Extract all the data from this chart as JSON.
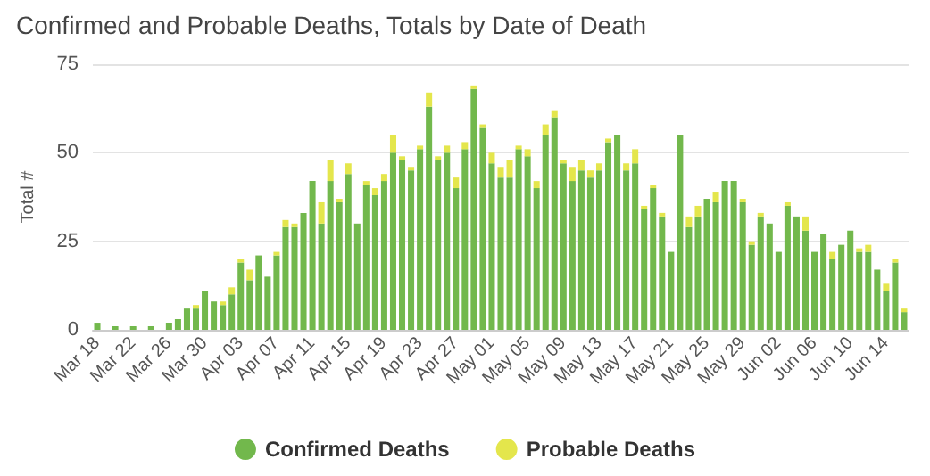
{
  "chart_data": {
    "type": "bar",
    "title": "Confirmed and Probable Deaths, Totals by Date of Death",
    "ylabel": "Total #",
    "stacked": true,
    "categories": [
      "Mar 18",
      null,
      null,
      null,
      "Mar 22",
      null,
      null,
      null,
      "Mar 26",
      null,
      null,
      null,
      "Mar 30",
      null,
      null,
      null,
      "Apr 03",
      null,
      null,
      null,
      "Apr 07",
      null,
      null,
      null,
      "Apr 11",
      null,
      null,
      null,
      "Apr 15",
      null,
      null,
      null,
      "Apr 19",
      null,
      null,
      null,
      "Apr 23",
      null,
      null,
      null,
      "Apr 27",
      null,
      null,
      null,
      "May 01",
      null,
      null,
      null,
      "May 05",
      null,
      null,
      null,
      "May 09",
      null,
      null,
      null,
      "May 13",
      null,
      null,
      null,
      "May 17",
      null,
      null,
      null,
      "May 21",
      null,
      null,
      null,
      "May 25",
      null,
      null,
      null,
      "May 29",
      null,
      null,
      null,
      "Jun 02",
      null,
      null,
      null,
      "Jun 06",
      null,
      null,
      null,
      "Jun 10",
      null,
      null,
      null,
      "Jun 14",
      null,
      null
    ],
    "series": [
      {
        "name": "Confirmed Deaths",
        "color": "#72b84c",
        "values": [
          2,
          0,
          1,
          0,
          1,
          0,
          1,
          0,
          2,
          3,
          6,
          6,
          11,
          8,
          7,
          10,
          19,
          14,
          21,
          15,
          21,
          29,
          29,
          33,
          42,
          30,
          42,
          36,
          44,
          30,
          41,
          38,
          42,
          50,
          48,
          45,
          51,
          63,
          48,
          50,
          40,
          51,
          68,
          57,
          47,
          43,
          43,
          51,
          49,
          40,
          55,
          60,
          47,
          42,
          45,
          43,
          45,
          53,
          55,
          45,
          47,
          34,
          40,
          32,
          22,
          55,
          29,
          32,
          37,
          36,
          42,
          42,
          36,
          24,
          32,
          30,
          22,
          35,
          32,
          28,
          22,
          27,
          20,
          24,
          28,
          22,
          22,
          17,
          11,
          19,
          5
        ]
      },
      {
        "name": "Probable Deaths",
        "color": "#e4e64c",
        "values": [
          0,
          0,
          0,
          0,
          0,
          0,
          0,
          0,
          0,
          0,
          0,
          1,
          0,
          0,
          1,
          2,
          1,
          3,
          0,
          0,
          1,
          2,
          1,
          0,
          0,
          6,
          6,
          1,
          3,
          0,
          1,
          2,
          2,
          5,
          1,
          1,
          1,
          4,
          1,
          2,
          3,
          2,
          1,
          1,
          3,
          3,
          5,
          1,
          2,
          2,
          3,
          2,
          1,
          4,
          3,
          2,
          2,
          1,
          0,
          2,
          4,
          1,
          1,
          1,
          0,
          0,
          3,
          3,
          0,
          3,
          0,
          0,
          1,
          1,
          1,
          0,
          0,
          1,
          0,
          4,
          0,
          0,
          2,
          0,
          0,
          1,
          2,
          0,
          2,
          1,
          1
        ]
      }
    ],
    "ylim": [
      0,
      75
    ],
    "yticks": [
      0,
      25,
      50,
      75
    ],
    "grid": "y",
    "legend": "bottom"
  }
}
